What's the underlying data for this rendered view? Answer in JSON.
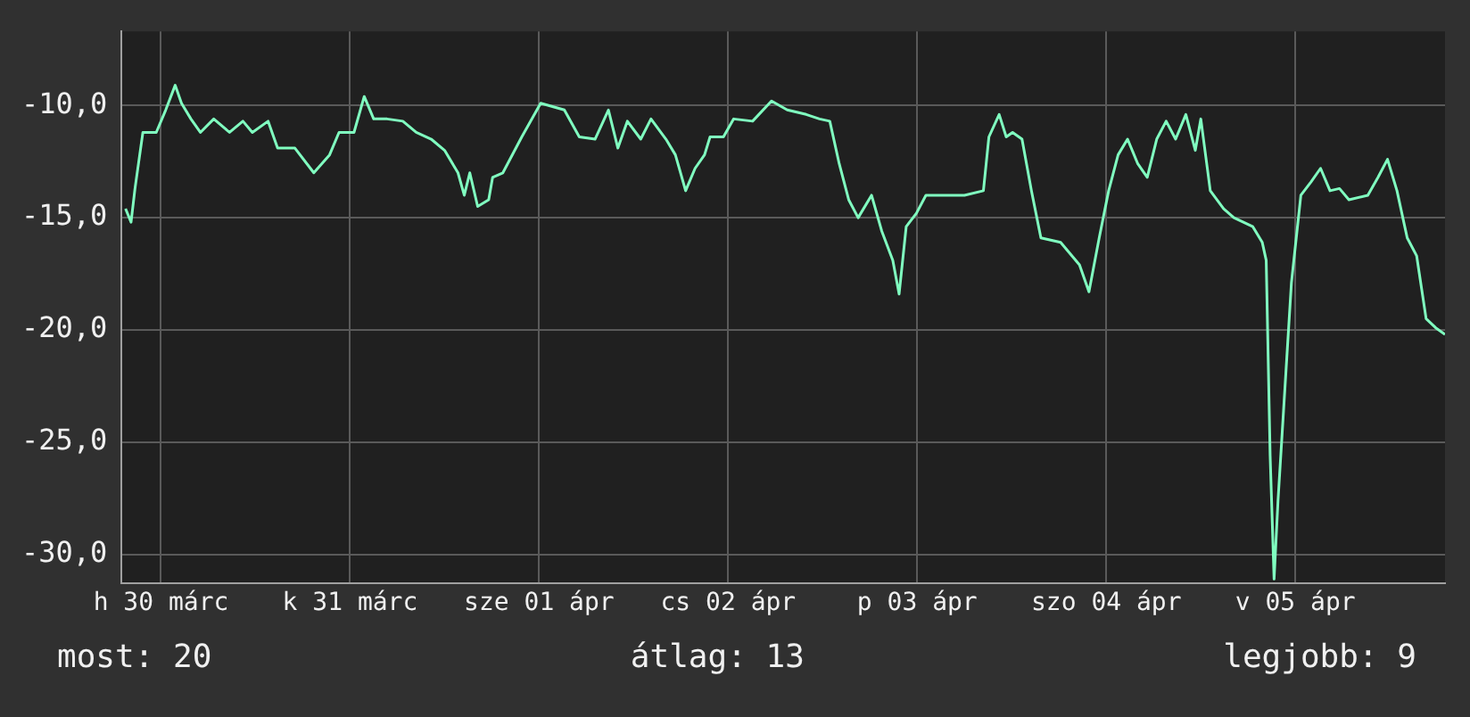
{
  "chart_data": {
    "type": "line",
    "x": [
      "--03-30T07:30",
      "--03-30T08:12",
      "--03-30T08:42",
      "--03-30T09:42",
      "--03-30T11:24",
      "--03-30T12:36",
      "--03-30T13:48",
      "--03-30T14:36",
      "--03-30T15:48",
      "--03-30T17:00",
      "--03-30T18:42",
      "--03-30T20:42",
      "--03-30T22:24",
      "--03-30T23:36",
      "--03-31T01:36",
      "--03-31T02:48",
      "--03-31T05:00",
      "--03-31T07:24",
      "--03-31T09:24",
      "--03-31T10:36",
      "--03-31T12:30",
      "--03-31T13:48",
      "--03-31T15:00",
      "--03-31T16:42",
      "--03-31T18:42",
      "--03-31T20:24",
      "--03-31T22:18",
      "--04-01T00:00",
      "--04-01T01:42",
      "--04-01T02:30",
      "--04-01T03:12",
      "--04-01T04:12",
      "--04-01T05:36",
      "--04-01T06:06",
      "--04-01T07:24",
      "--04-01T09:48",
      "--04-01T12:12",
      "--04-01T15:12",
      "--04-01T17:06",
      "--04-01T19:06",
      "--04-01T20:48",
      "--04-01T22:00",
      "--04-01T23:12",
      "--04-02T00:54",
      "--04-02T02:12",
      "--04-02T04:06",
      "--04-02T05:18",
      "--04-02T06:36",
      "--04-02T07:48",
      "--04-02T09:00",
      "--04-02T09:42",
      "--04-02T11:24",
      "--04-02T12:42",
      "--04-02T15:06",
      "--04-02T17:30",
      "--04-02T19:30",
      "--04-02T21:54",
      "--04-02T23:36",
      "--04-03T00:54",
      "--04-03T02:06",
      "--04-03T03:18",
      "--04-03T04:30",
      "--04-03T06:12",
      "--04-03T07:30",
      "--04-03T08:54",
      "--04-03T09:42",
      "--04-03T10:36",
      "--04-03T11:54",
      "--04-03T13:06",
      "--04-03T15:30",
      "--04-03T18:00",
      "--04-03T20:24",
      "--04-03T21:06",
      "--04-03T22:24",
      "--04-03T23:18",
      "--04-04T00:06",
      "--04-04T01:18",
      "--04-04T02:30",
      "--04-04T03:42",
      "--04-04T06:12",
      "--04-04T08:36",
      "--04-04T09:48",
      "--04-04T11:06",
      "--04-04T12:18",
      "--04-04T13:30",
      "--04-04T14:42",
      "--04-04T16:00",
      "--04-04T17:12",
      "--04-04T18:24",
      "--04-04T19:36",
      "--04-04T20:48",
      "--04-04T22:06",
      "--04-04T23:18",
      "--04-05T00:00",
      "--04-05T01:12",
      "--04-05T02:54",
      "--04-05T04:12",
      "--04-05T06:36",
      "--04-05T07:48",
      "--04-05T08:18",
      "--04-05T08:48",
      "--04-05T09:18",
      "--04-05T09:48",
      "--04-05T10:30",
      "--04-05T11:30",
      "--04-05T12:42",
      "--04-05T14:00",
      "--04-05T15:12",
      "--04-05T16:24",
      "--04-05T17:36",
      "--04-05T18:48",
      "--04-05T21:12",
      "--04-05T22:30",
      "--04-05T23:42",
      "--04-06T00:54",
      "--04-06T02:12",
      "--04-06T03:24",
      "--04-06T04:36",
      "--04-06T05:48",
      "--04-06T07:00"
    ],
    "series": [
      {
        "color": "#80ffc0",
        "values": [
          -14.6,
          -15.2,
          -13.7,
          -11.2,
          -11.2,
          -10.2,
          -9.1,
          -9.9,
          -10.6,
          -11.2,
          -10.6,
          -11.2,
          -10.7,
          -11.2,
          -10.7,
          -11.9,
          -11.9,
          -13.0,
          -12.2,
          -11.2,
          -11.2,
          -9.6,
          -10.6,
          -10.6,
          -10.7,
          -11.2,
          -11.5,
          -12.0,
          -13.0,
          -14.0,
          -13.0,
          -14.5,
          -14.2,
          -13.2,
          -13.0,
          -11.4,
          -9.9,
          -10.2,
          -11.4,
          -11.5,
          -10.2,
          -11.9,
          -10.7,
          -11.5,
          -10.6,
          -11.5,
          -12.2,
          -13.8,
          -12.8,
          -12.2,
          -11.4,
          -11.4,
          -10.6,
          -10.7,
          -9.8,
          -10.2,
          -10.4,
          -10.6,
          -10.7,
          -12.6,
          -14.2,
          -15.0,
          -14.0,
          -15.6,
          -16.9,
          -18.4,
          -15.4,
          -14.8,
          -14.0,
          -14.0,
          -14.0,
          -13.8,
          -11.4,
          -10.4,
          -11.4,
          -11.2,
          -11.5,
          -13.8,
          -15.9,
          -16.1,
          -17.1,
          -18.3,
          -15.9,
          -13.8,
          -12.2,
          -11.5,
          -12.6,
          -13.2,
          -11.5,
          -10.7,
          -11.5,
          -10.4,
          -12.0,
          -10.6,
          -13.8,
          -14.6,
          -15.0,
          -15.4,
          -16.1,
          -16.9,
          -25.6,
          -31.1,
          -27.6,
          -23.6,
          -17.9,
          -14.0,
          -13.4,
          -12.8,
          -13.8,
          -13.7,
          -14.2,
          -14.0,
          -13.2,
          -12.4,
          -13.8,
          -15.9,
          -16.7,
          -19.5,
          -19.9,
          -20.2
        ]
      }
    ],
    "xlim": [
      "--03-30T07:00",
      "--04-06T07:00"
    ],
    "xticks": [
      {
        "value": "--03-30T12:00",
        "label": "h 30 márc"
      },
      {
        "value": "--03-31T12:00",
        "label": "k 31 márc"
      },
      {
        "value": "--04-01T12:00",
        "label": "sze 01 ápr"
      },
      {
        "value": "--04-02T12:00",
        "label": "cs 02 ápr"
      },
      {
        "value": "--04-03T12:00",
        "label": "p 03 ápr"
      },
      {
        "value": "--04-04T12:00",
        "label": "szo 04 ápr"
      },
      {
        "value": "--04-05T12:00",
        "label": "v 05 ápr"
      }
    ],
    "ylim": [
      -31.3,
      -6.7
    ],
    "yticks": [
      {
        "value": -10,
        "label": "-10,0"
      },
      {
        "value": -15,
        "label": "-15,0"
      },
      {
        "value": -20,
        "label": "-20,0"
      },
      {
        "value": -25,
        "label": "-25,0"
      },
      {
        "value": -30,
        "label": "-30,0"
      }
    ],
    "grid": true,
    "legend": false,
    "marker": "none",
    "line_style": "solid",
    "annotations": [
      "most: 20",
      "átlag: 13",
      "legjobb: 9"
    ]
  }
}
